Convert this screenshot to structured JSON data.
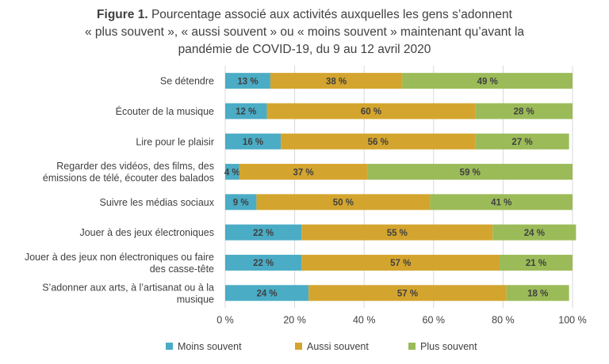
{
  "figure_label": "Figure 1.",
  "title_lines": [
    "Pourcentage associé aux activités auxquelles les gens s’adonnent",
    "« plus souvent », « aussi souvent » ou « moins souvent » maintenant qu’avant la",
    "pandémie de COVID-19, du 9 au 12 avril 2020"
  ],
  "chart_data": {
    "type": "bar",
    "orientation": "horizontal",
    "stacked": true,
    "title": "Figure 1. Pourcentage associé aux activités auxquelles les gens s’adonnent « plus souvent », « aussi souvent » ou « moins souvent » maintenant qu’avant la pandémie de COVID-19, du 9 au 12 avril 2020",
    "categories": [
      [
        "Se détendre"
      ],
      [
        "Écouter de la musique"
      ],
      [
        "Lire pour le plaisir"
      ],
      [
        "Regarder des vidéos, des films, des",
        "émissions de télé, écouter des balados"
      ],
      [
        "Suivre les médias sociaux"
      ],
      [
        "Jouer à des jeux électroniques"
      ],
      [
        "Jouer à des jeux non électroniques ou faire",
        "des casse-tête"
      ],
      [
        "S’adonner aux arts, à l’artisanat ou à la",
        "musique"
      ]
    ],
    "series": [
      {
        "name": "Moins souvent",
        "color": "#4bacc6",
        "values": [
          13,
          12,
          16,
          4,
          9,
          22,
          22,
          24
        ]
      },
      {
        "name": "Aussi souvent",
        "color": "#d4a52e",
        "values": [
          38,
          60,
          56,
          37,
          50,
          55,
          57,
          57
        ]
      },
      {
        "name": "Plus souvent",
        "color": "#9bbb59",
        "values": [
          49,
          28,
          27,
          59,
          41,
          24,
          21,
          18
        ]
      }
    ],
    "xlim": [
      0,
      100
    ],
    "xticks": [
      "0 %",
      "20 %",
      "40 %",
      "60 %",
      "80 %",
      "100 %"
    ],
    "value_suffix": " %",
    "grid": true,
    "legend_position": "bottom"
  }
}
